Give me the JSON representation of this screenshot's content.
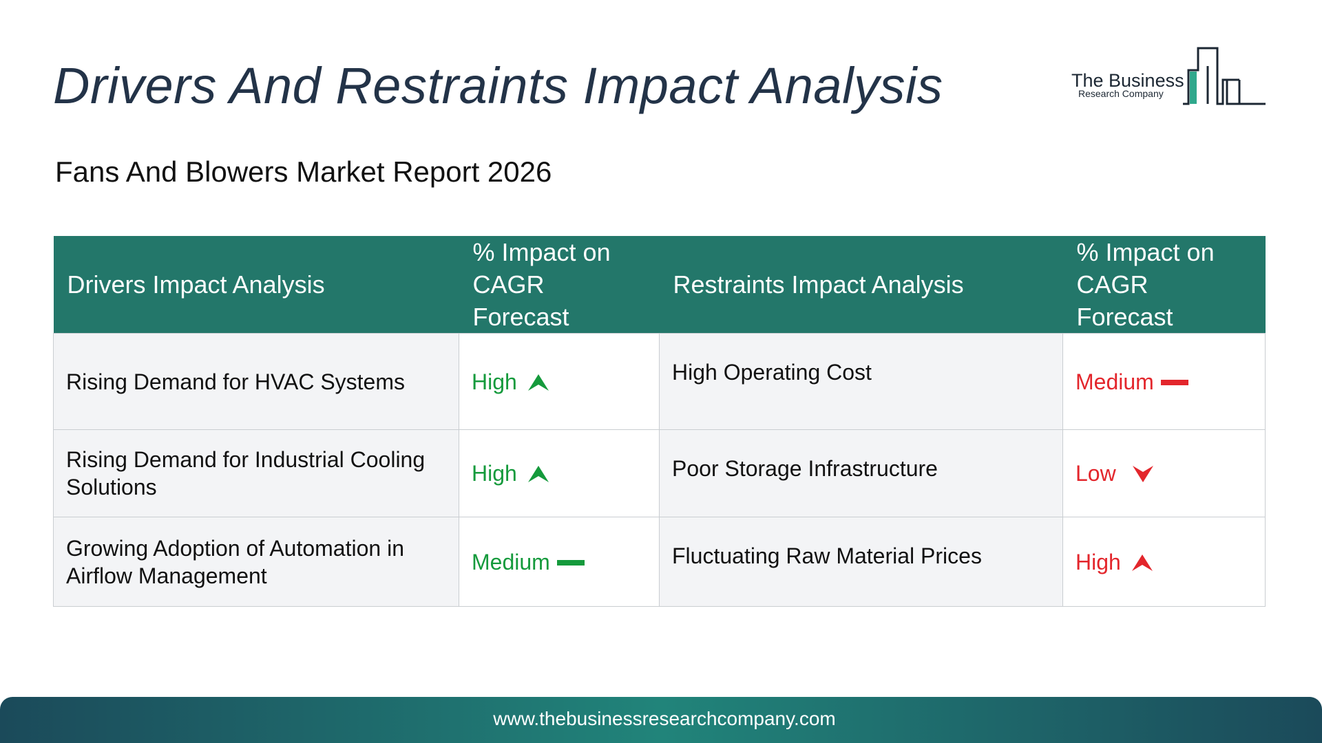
{
  "title": "Drivers And Restraints Impact Analysis",
  "subtitle": "Fans And Blowers Market Report 2026",
  "logo": {
    "line1": "The Business",
    "line2": "Research Company",
    "icon": "building-bars-logo-icon"
  },
  "table": {
    "headers": [
      "Drivers Impact Analysis",
      "% Impact on CAGR Forecast",
      "Restraints Impact Analysis",
      "% Impact on CAGR Forecast"
    ],
    "rows": [
      {
        "driver": "Rising Demand for HVAC Systems",
        "driver_impact": "High",
        "driver_trend": "up-arrow-icon",
        "restraint": "High Operating Cost",
        "restraint_impact": "Medium",
        "restraint_trend": "dash-icon"
      },
      {
        "driver": "Rising Demand for Industrial Cooling Solutions",
        "driver_impact": "High",
        "driver_trend": "up-arrow-icon",
        "restraint": "Poor Storage Infrastructure",
        "restraint_impact": "Low",
        "restraint_trend": "down-arrow-icon"
      },
      {
        "driver": "Growing Adoption of Automation in Airflow Management",
        "driver_impact": "Medium",
        "driver_trend": "dash-icon",
        "restraint": "Fluctuating Raw Material Prices",
        "restraint_impact": "High",
        "restraint_trend": "up-arrow-icon"
      }
    ]
  },
  "footer": {
    "url": "www.thebusinessresearchcompany.com"
  },
  "colors": {
    "header_bg": "#23776a",
    "driver_impact": "#159a3c",
    "restraint_impact": "#e3262c",
    "title": "#233348"
  }
}
